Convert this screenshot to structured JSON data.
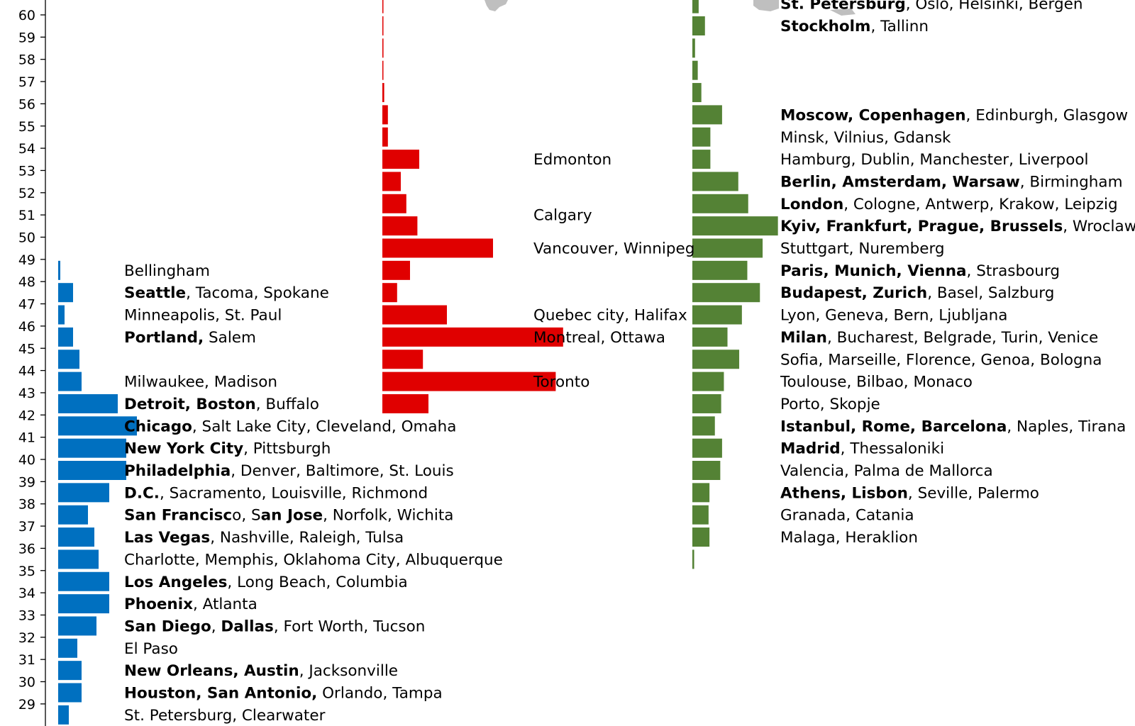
{
  "chart_data": {
    "type": "bar",
    "orientation": "horizontal",
    "y_axis": {
      "ticks": [
        29,
        30,
        31,
        32,
        33,
        34,
        35,
        36,
        37,
        38,
        39,
        40,
        41,
        42,
        43,
        44,
        45,
        46,
        47,
        48,
        49,
        50,
        51,
        52,
        53,
        54,
        55,
        56,
        57,
        58,
        59,
        60
      ]
    },
    "colors": {
      "usa": "#0070c0",
      "canada": "#e00000",
      "europe": "#548235",
      "map": "#bfbfbf"
    },
    "series": [
      {
        "color": "#0070c0",
        "values": [
          {
            "lat": 29,
            "value": 5
          },
          {
            "lat": 30,
            "value": 11
          },
          {
            "lat": 31,
            "value": 11
          },
          {
            "lat": 32,
            "value": 9
          },
          {
            "lat": 33,
            "value": 18
          },
          {
            "lat": 34,
            "value": 24
          },
          {
            "lat": 35,
            "value": 24
          },
          {
            "lat": 36,
            "value": 19
          },
          {
            "lat": 37,
            "value": 17
          },
          {
            "lat": 38,
            "value": 14
          },
          {
            "lat": 39,
            "value": 24
          },
          {
            "lat": 40,
            "value": 32
          },
          {
            "lat": 41,
            "value": 32
          },
          {
            "lat": 42,
            "value": 37
          },
          {
            "lat": 43,
            "value": 28
          },
          {
            "lat": 44,
            "value": 11
          },
          {
            "lat": 45,
            "value": 10
          },
          {
            "lat": 46,
            "value": 7
          },
          {
            "lat": 47,
            "value": 3
          },
          {
            "lat": 48,
            "value": 7
          },
          {
            "lat": 49,
            "value": 1
          }
        ],
        "labels": [
          {
            "lat": 29,
            "parts": [
              [
                "St. Petersburg, Clearwater",
                false
              ]
            ]
          },
          {
            "lat": 30,
            "parts": [
              [
                "Houston, San Antonio,",
                true
              ],
              [
                " Orlando, Tampa",
                false
              ]
            ]
          },
          {
            "lat": 31,
            "parts": [
              [
                "New Orleans, Austin",
                true
              ],
              [
                ", Jacksonville",
                false
              ]
            ]
          },
          {
            "lat": 32,
            "parts": [
              [
                "El Paso",
                false
              ]
            ]
          },
          {
            "lat": 33,
            "parts": [
              [
                "San Diego",
                true
              ],
              [
                ", ",
                false
              ],
              [
                "Dallas",
                true
              ],
              [
                ", Fort Worth, Tucson",
                false
              ]
            ]
          },
          {
            "lat": 34,
            "parts": [
              [
                "Phoenix",
                true
              ],
              [
                ", Atlanta",
                false
              ]
            ]
          },
          {
            "lat": 35,
            "parts": [
              [
                "Los Angeles",
                true
              ],
              [
                ", Long Beach, Columbia",
                false
              ]
            ]
          },
          {
            "lat": 36,
            "parts": [
              [
                "Charlotte, Memphis, Oklahoma City, Albuquerque",
                false
              ]
            ]
          },
          {
            "lat": 37,
            "parts": [
              [
                "Las Vegas",
                true
              ],
              [
                ", Nashville, Raleigh, Tulsa",
                false
              ]
            ]
          },
          {
            "lat": 38,
            "parts": [
              [
                "San Francisc",
                true
              ],
              [
                "o, S",
                false
              ],
              [
                "an Jose",
                true
              ],
              [
                ", Norfolk, Wichita",
                false
              ]
            ]
          },
          {
            "lat": 39,
            "parts": [
              [
                "D.C.",
                true
              ],
              [
                ", Sacramento, Louisville, Richmond",
                false
              ]
            ]
          },
          {
            "lat": 40,
            "parts": [
              [
                "Philadelphia",
                true
              ],
              [
                ", Denver, Baltimore, St. Louis",
                false
              ]
            ]
          },
          {
            "lat": 41,
            "parts": [
              [
                "New York City",
                true
              ],
              [
                ", Pittsburgh",
                false
              ]
            ]
          },
          {
            "lat": 42,
            "parts": [
              [
                "Chicago",
                true
              ],
              [
                ", Salt Lake City, Cleveland, Omaha",
                false
              ]
            ]
          },
          {
            "lat": 43,
            "parts": [
              [
                "Detroit, Boston",
                true
              ],
              [
                ", Buffalo",
                false
              ]
            ]
          },
          {
            "lat": 44,
            "parts": [
              [
                "Milwaukee, Madison",
                false
              ]
            ]
          },
          {
            "lat": 46,
            "parts": [
              [
                "Portland,",
                true
              ],
              [
                " Salem",
                false
              ]
            ]
          },
          {
            "lat": 47,
            "parts": [
              [
                "Minneapolis, St. Paul",
                false
              ]
            ]
          },
          {
            "lat": 48,
            "parts": [
              [
                "Seattle",
                true
              ],
              [
                ", Tacoma, Spokane",
                false
              ]
            ]
          },
          {
            "lat": 49,
            "parts": [
              [
                "Bellingham",
                false
              ]
            ]
          }
        ]
      },
      {
        "color": "#e00000",
        "values": [
          {
            "lat": 43,
            "value": 25
          },
          {
            "lat": 44,
            "value": 94
          },
          {
            "lat": 45,
            "value": 22
          },
          {
            "lat": 46,
            "value": 98
          },
          {
            "lat": 47,
            "value": 35
          },
          {
            "lat": 48,
            "value": 8
          },
          {
            "lat": 49,
            "value": 15
          },
          {
            "lat": 50,
            "value": 60
          },
          {
            "lat": 51,
            "value": 19
          },
          {
            "lat": 52,
            "value": 13
          },
          {
            "lat": 53,
            "value": 10
          },
          {
            "lat": 54,
            "value": 20
          },
          {
            "lat": 55,
            "value": 3
          },
          {
            "lat": 56,
            "value": 3
          },
          {
            "lat": 57,
            "value": 1
          },
          {
            "lat": 58,
            "value": 0.3
          },
          {
            "lat": 59,
            "value": 0.6
          },
          {
            "lat": 60,
            "value": 0.3
          },
          {
            "lat": 61,
            "value": 0.3
          }
        ],
        "labels": [
          {
            "lat": 44,
            "parts": [
              [
                "Toronto",
                false
              ]
            ]
          },
          {
            "lat": 46,
            "parts": [
              [
                "Montreal, Ottawa",
                false
              ]
            ]
          },
          {
            "lat": 47,
            "parts": [
              [
                "Quebec city, Halifax",
                false
              ]
            ]
          },
          {
            "lat": 50,
            "parts": [
              [
                "Vancouver, Winnipeg",
                false
              ]
            ]
          },
          {
            "lat": 51.5,
            "parts": [
              [
                "Calgary",
                false
              ]
            ]
          },
          {
            "lat": 54,
            "parts": [
              [
                "Edmonton",
                false
              ]
            ]
          }
        ]
      },
      {
        "color": "#548235",
        "values": [
          {
            "lat": 36,
            "value": 2
          },
          {
            "lat": 37,
            "value": 19
          },
          {
            "lat": 38,
            "value": 18
          },
          {
            "lat": 39,
            "value": 19
          },
          {
            "lat": 40,
            "value": 31
          },
          {
            "lat": 41,
            "value": 33
          },
          {
            "lat": 42,
            "value": 25
          },
          {
            "lat": 43,
            "value": 32
          },
          {
            "lat": 44,
            "value": 35
          },
          {
            "lat": 45,
            "value": 52
          },
          {
            "lat": 46,
            "value": 39
          },
          {
            "lat": 47,
            "value": 55
          },
          {
            "lat": 48,
            "value": 75
          },
          {
            "lat": 49,
            "value": 61
          },
          {
            "lat": 50,
            "value": 78
          },
          {
            "lat": 51,
            "value": 95
          },
          {
            "lat": 52,
            "value": 62
          },
          {
            "lat": 53,
            "value": 51
          },
          {
            "lat": 54,
            "value": 20
          },
          {
            "lat": 55,
            "value": 20
          },
          {
            "lat": 56,
            "value": 33
          },
          {
            "lat": 57,
            "value": 10
          },
          {
            "lat": 58,
            "value": 6
          },
          {
            "lat": 59,
            "value": 3
          },
          {
            "lat": 60,
            "value": 14
          },
          {
            "lat": 61,
            "value": 7
          }
        ],
        "labels": [
          {
            "lat": 37,
            "parts": [
              [
                "Malaga, Heraklion",
                false
              ]
            ]
          },
          {
            "lat": 38,
            "parts": [
              [
                "Granada, Catania",
                false
              ]
            ]
          },
          {
            "lat": 39,
            "parts": [
              [
                "Athens, Lisbon",
                true
              ],
              [
                ", Seville, Palermo",
                false
              ]
            ]
          },
          {
            "lat": 40,
            "parts": [
              [
                "Valencia, Palma de Mallorca",
                false
              ]
            ]
          },
          {
            "lat": 41,
            "parts": [
              [
                "Madrid",
                true
              ],
              [
                ", Thessaloniki",
                false
              ]
            ]
          },
          {
            "lat": 42,
            "parts": [
              [
                "Istanbul, Rome, Barcelona",
                true
              ],
              [
                ", Naples, Tirana",
                false
              ]
            ]
          },
          {
            "lat": 43,
            "parts": [
              [
                "Porto, Skopje",
                false
              ]
            ]
          },
          {
            "lat": 44,
            "parts": [
              [
                "Toulouse, Bilbao, Monaco",
                false
              ]
            ]
          },
          {
            "lat": 45,
            "parts": [
              [
                "Sofia, Marseille, Florence, Genoa, Bologna",
                false
              ]
            ]
          },
          {
            "lat": 46,
            "parts": [
              [
                "Milan",
                true
              ],
              [
                ", Bucharest, Belgrade, Turin, Venice",
                false
              ]
            ]
          },
          {
            "lat": 47,
            "parts": [
              [
                "Lyon, Geneva, Bern, Ljubljana",
                false
              ]
            ]
          },
          {
            "lat": 48,
            "parts": [
              [
                "Budapest, Zurich",
                true
              ],
              [
                ", Basel, Salzburg",
                false
              ]
            ]
          },
          {
            "lat": 49,
            "parts": [
              [
                "Paris, Munich, Vienna",
                true
              ],
              [
                ", Strasbourg",
                false
              ]
            ]
          },
          {
            "lat": 50,
            "parts": [
              [
                "Stuttgart, Nuremberg",
                false
              ]
            ]
          },
          {
            "lat": 51,
            "parts": [
              [
                "Kyiv, Frankfurt, Prague, Brussels",
                true
              ],
              [
                ", Wroclaw",
                false
              ]
            ]
          },
          {
            "lat": 52,
            "parts": [
              [
                "London",
                true
              ],
              [
                ", Cologne, Antwerp, Krakow, Leipzig",
                false
              ]
            ]
          },
          {
            "lat": 53,
            "parts": [
              [
                "Berlin, Amsterdam, Warsaw",
                true
              ],
              [
                ", Birmingham",
                false
              ]
            ]
          },
          {
            "lat": 54,
            "parts": [
              [
                "Hamburg, Dublin, Manchester, Liverpool",
                false
              ]
            ]
          },
          {
            "lat": 55,
            "parts": [
              [
                "Minsk, Vilnius, Gdansk",
                false
              ]
            ]
          },
          {
            "lat": 56,
            "parts": [
              [
                "Moscow, Copenhagen",
                true
              ],
              [
                ", Edinburgh, Glasgow",
                false
              ]
            ]
          },
          {
            "lat": 60,
            "parts": [
              [
                "Stockholm",
                true
              ],
              [
                ", Tallinn",
                false
              ]
            ]
          },
          {
            "lat": 61,
            "parts": [
              [
                "St. Petersburg",
                true
              ],
              [
                ", Oslo, Helsinki, Bergen",
                false
              ]
            ]
          }
        ]
      }
    ]
  }
}
